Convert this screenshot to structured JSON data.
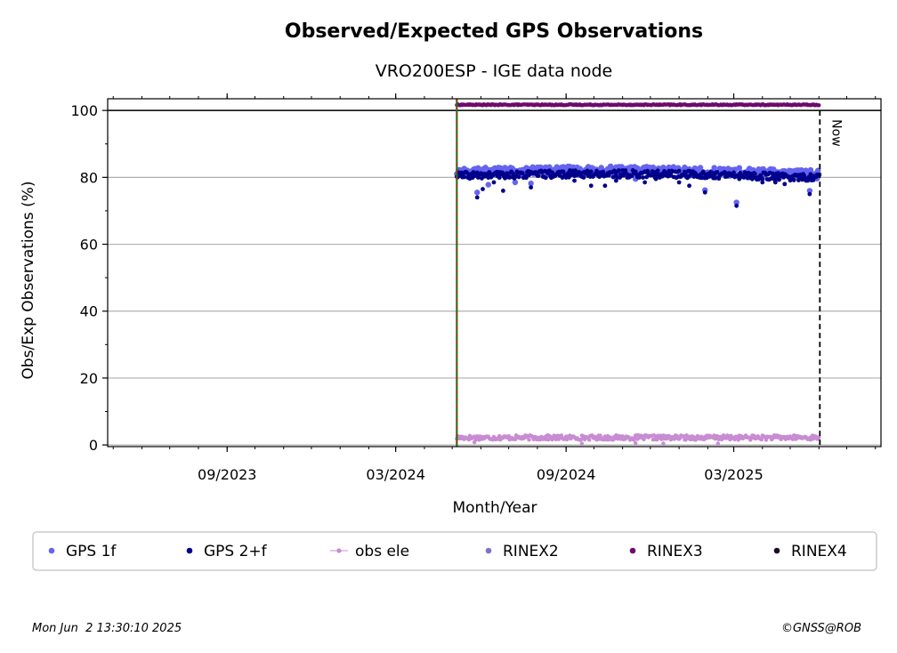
{
  "chart_data": {
    "type": "scatter",
    "title": "Observed/Expected GPS Observations",
    "subtitle": "VRO200ESP - IGE data node",
    "xlabel": "Month/Year",
    "ylabel": "Obs/Exp Observations (%)",
    "xlim": [
      "2023-04-25",
      "2025-08-07"
    ],
    "ylim": [
      -0.5,
      103.5
    ],
    "x_ticks": [
      "09/2023",
      "03/2024",
      "09/2024",
      "03/2025"
    ],
    "x_tick_dates": [
      "2023-09-01",
      "2024-03-01",
      "2024-09-01",
      "2025-03-01"
    ],
    "y_ticks": [
      0,
      20,
      40,
      60,
      80,
      100
    ],
    "grid": "horizontal",
    "reference_line_y": 100,
    "start_line_date": "2024-05-06",
    "now_date": "2025-06-02",
    "now_label": "Now",
    "legend_position": "bottom",
    "series": [
      {
        "name": "GPS 1f",
        "color": "#6464f0",
        "marker": "dot",
        "x_range": [
          "2024-05-06",
          "2025-06-01"
        ],
        "level": 81.5,
        "points": [
          [
            "2024-05-28",
            75.5
          ],
          [
            "2024-06-09",
            77.8
          ],
          [
            "2024-07-08",
            78.5
          ],
          [
            "2024-07-25",
            78.2
          ],
          [
            "2024-11-15",
            79.5
          ],
          [
            "2025-01-29",
            76.2
          ],
          [
            "2025-03-04",
            72.5
          ],
          [
            "2025-05-22",
            76.0
          ]
        ]
      },
      {
        "name": "GPS 2+f",
        "color": "#00008b",
        "marker": "dot",
        "x_range": [
          "2024-05-06",
          "2025-06-01"
        ],
        "level": 80.5,
        "points": [
          [
            "2024-05-28",
            74.0
          ],
          [
            "2024-06-03",
            76.5
          ],
          [
            "2024-06-15",
            78.5
          ],
          [
            "2024-06-25",
            76.0
          ],
          [
            "2024-07-25",
            77.0
          ],
          [
            "2024-09-10",
            79.0
          ],
          [
            "2024-09-28",
            77.5
          ],
          [
            "2024-10-13",
            77.5
          ],
          [
            "2024-10-25",
            79.0
          ],
          [
            "2024-11-25",
            78.5
          ],
          [
            "2024-12-07",
            79.5
          ],
          [
            "2025-01-01",
            78.5
          ],
          [
            "2025-01-12",
            77.5
          ],
          [
            "2025-01-29",
            75.5
          ],
          [
            "2025-03-04",
            71.5
          ],
          [
            "2025-04-01",
            78.5
          ],
          [
            "2025-04-15",
            78.5
          ],
          [
            "2025-04-25",
            78.0
          ],
          [
            "2025-05-22",
            75.0
          ]
        ]
      },
      {
        "name": "obs ele",
        "color": "#c88cd2",
        "marker": "dot-line",
        "x_range": [
          "2024-05-06",
          "2025-06-01"
        ],
        "level": 2.2,
        "points": [
          [
            "2024-05-25",
            0.8
          ],
          [
            "2024-09-18",
            0.4
          ],
          [
            "2024-11-15",
            0.5
          ],
          [
            "2024-12-15",
            0.4
          ],
          [
            "2025-02-12",
            0.4
          ]
        ]
      },
      {
        "name": "RINEX2",
        "color": "#7f73c8",
        "marker": "dot",
        "points": []
      },
      {
        "name": "RINEX3",
        "color": "#6e0a6e",
        "marker": "dot",
        "x_range": [
          "2024-05-06",
          "2025-06-01"
        ],
        "level": 101.7,
        "points": []
      },
      {
        "name": "RINEX4",
        "color": "#1e0a28",
        "marker": "dot",
        "points": []
      }
    ]
  },
  "footer": {
    "timestamp": "Mon Jun  2 13:30:10 2025",
    "copyright": "©GNSS@ROB"
  }
}
